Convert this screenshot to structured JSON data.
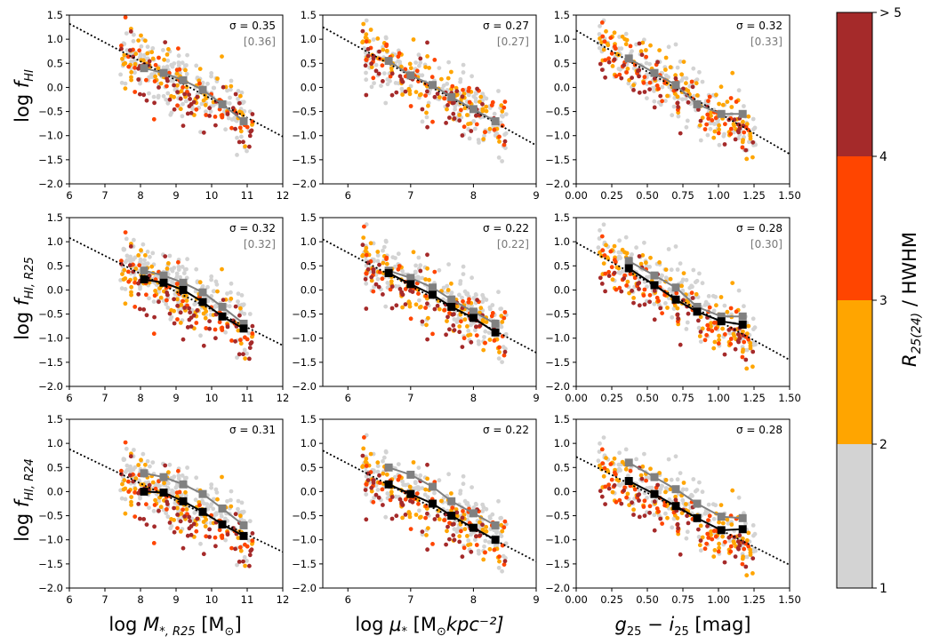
{
  "colors": {
    "gray_bin": "#d3d3d3",
    "orange_bin": "#ffa500",
    "redorange_bin": "#ff4500",
    "darkred_bin": "#a52a2a",
    "median_all": "#808080",
    "median_corrected": "#000000"
  },
  "colorbar": {
    "label_main": "R",
    "label_sub": "25(24)",
    "label_rest": " / HWHM",
    "ticks": [
      "1",
      "2",
      "3",
      "4",
      "> 5"
    ],
    "bins": [
      {
        "from": 1,
        "to": 2,
        "color": "#d3d3d3"
      },
      {
        "from": 2,
        "to": 3,
        "color": "#ffa500"
      },
      {
        "from": 3,
        "to": 4,
        "color": "#ff4500"
      },
      {
        "from": 4,
        "to": 5,
        "color": "#a52a2a"
      }
    ]
  },
  "chart_data": [
    {
      "type": "scatter",
      "id": "r1c1",
      "x_var": "mass",
      "y_var": "fhi",
      "xlim": [
        6,
        12
      ],
      "ylim": [
        -2.0,
        1.5
      ],
      "xticks": [
        "6",
        "7",
        "8",
        "9",
        "10",
        "11",
        "12"
      ],
      "yticks": [
        "−2.0",
        "−1.5",
        "−1.0",
        "−0.5",
        "0.0",
        "0.5",
        "1.0",
        "1.5"
      ],
      "sigma": "σ = 0.35",
      "sigma_bracket": "[0.36]",
      "fit_line": {
        "x": [
          6,
          12
        ],
        "y": [
          1.32,
          -1.02
        ]
      },
      "median_all": {
        "x": [
          8.1,
          8.65,
          9.2,
          9.75,
          10.3,
          10.9
        ],
        "y": [
          0.4,
          0.3,
          0.15,
          -0.05,
          -0.35,
          -0.7
        ]
      },
      "median_corrected": null
    },
    {
      "type": "scatter",
      "id": "r1c2",
      "x_var": "mu",
      "y_var": "fhi",
      "xlim": [
        5.6,
        9
      ],
      "ylim": [
        -2.0,
        1.5
      ],
      "xticks": [
        "6",
        "7",
        "8",
        "9"
      ],
      "yticks": [
        "−2.0",
        "−1.5",
        "−1.0",
        "−0.5",
        "0.0",
        "0.5",
        "1.0",
        "1.5"
      ],
      "sigma": "σ = 0.27",
      "sigma_bracket": "[0.27]",
      "fit_line": {
        "x": [
          5.6,
          9
        ],
        "y": [
          1.25,
          -1.2
        ]
      },
      "median_all": {
        "x": [
          6.65,
          7.0,
          7.35,
          7.65,
          8.0,
          8.35
        ],
        "y": [
          0.55,
          0.25,
          0.05,
          -0.2,
          -0.45,
          -0.7
        ]
      },
      "median_corrected": null
    },
    {
      "type": "scatter",
      "id": "r1c3",
      "x_var": "color",
      "y_var": "fhi",
      "xlim": [
        0,
        1.5
      ],
      "ylim": [
        -2.0,
        1.5
      ],
      "xticks": [
        "0.00",
        "0.25",
        "0.50",
        "0.75",
        "1.00",
        "1.25",
        "1.50"
      ],
      "yticks": [
        "−2.0",
        "−1.5",
        "−1.0",
        "−0.5",
        "0.0",
        "0.5",
        "1.0",
        "1.5"
      ],
      "sigma": "σ = 0.32",
      "sigma_bracket": "[0.33]",
      "fit_line": {
        "x": [
          0,
          1.5
        ],
        "y": [
          1.18,
          -1.38
        ]
      },
      "median_all": {
        "x": [
          0.37,
          0.55,
          0.7,
          0.85,
          1.02,
          1.17
        ],
        "y": [
          0.6,
          0.3,
          0.05,
          -0.35,
          -0.55,
          -0.55
        ]
      },
      "median_corrected": null
    },
    {
      "type": "scatter",
      "id": "r2c1",
      "x_var": "mass",
      "y_var": "fhi25",
      "xlim": [
        6,
        12
      ],
      "ylim": [
        -2.0,
        1.5
      ],
      "xticks": [
        "6",
        "7",
        "8",
        "9",
        "10",
        "11",
        "12"
      ],
      "yticks": [
        "−2.0",
        "−1.5",
        "−1.0",
        "−0.5",
        "0.0",
        "0.5",
        "1.0",
        "1.5"
      ],
      "sigma": "σ = 0.32",
      "sigma_bracket": "[0.32]",
      "fit_line": {
        "x": [
          6,
          12
        ],
        "y": [
          1.08,
          -1.15
        ]
      },
      "median_all": {
        "x": [
          8.1,
          8.65,
          9.2,
          9.75,
          10.3,
          10.9
        ],
        "y": [
          0.4,
          0.3,
          0.15,
          -0.05,
          -0.35,
          -0.7
        ]
      },
      "median_corrected": {
        "x": [
          8.1,
          8.65,
          9.2,
          9.75,
          10.3,
          10.9
        ],
        "y": [
          0.22,
          0.15,
          0.0,
          -0.25,
          -0.55,
          -0.8
        ]
      }
    },
    {
      "type": "scatter",
      "id": "r2c2",
      "x_var": "mu",
      "y_var": "fhi25",
      "xlim": [
        5.6,
        9
      ],
      "ylim": [
        -2.0,
        1.5
      ],
      "xticks": [
        "6",
        "7",
        "8",
        "9"
      ],
      "yticks": [
        "−2.0",
        "−1.5",
        "−1.0",
        "−0.5",
        "0.0",
        "0.5",
        "1.0",
        "1.5"
      ],
      "sigma": "σ = 0.22",
      "sigma_bracket": "[0.22]",
      "fit_line": {
        "x": [
          5.6,
          9
        ],
        "y": [
          1.05,
          -1.3
        ]
      },
      "median_all": {
        "x": [
          6.65,
          7.0,
          7.35,
          7.65,
          8.0,
          8.35
        ],
        "y": [
          0.4,
          0.25,
          0.05,
          -0.2,
          -0.45,
          -0.7
        ]
      },
      "median_corrected": {
        "x": [
          6.65,
          7.0,
          7.35,
          7.65,
          8.0,
          8.35
        ],
        "y": [
          0.35,
          0.12,
          -0.1,
          -0.35,
          -0.58,
          -0.88
        ]
      }
    },
    {
      "type": "scatter",
      "id": "r2c3",
      "x_var": "color",
      "y_var": "fhi25",
      "xlim": [
        0,
        1.5
      ],
      "ylim": [
        -2.0,
        1.5
      ],
      "xticks": [
        "0.00",
        "0.25",
        "0.50",
        "0.75",
        "1.00",
        "1.25",
        "1.50"
      ],
      "yticks": [
        "−2.0",
        "−1.5",
        "−1.0",
        "−0.5",
        "0.0",
        "0.5",
        "1.0",
        "1.5"
      ],
      "sigma": "σ = 0.28",
      "sigma_bracket": "[0.30]",
      "fit_line": {
        "x": [
          0,
          1.5
        ],
        "y": [
          0.98,
          -1.45
        ]
      },
      "median_all": {
        "x": [
          0.37,
          0.55,
          0.7,
          0.85,
          1.02,
          1.17
        ],
        "y": [
          0.6,
          0.3,
          0.05,
          -0.35,
          -0.55,
          -0.55
        ]
      },
      "median_corrected": {
        "x": [
          0.37,
          0.55,
          0.7,
          0.85,
          1.02,
          1.17
        ],
        "y": [
          0.45,
          0.1,
          -0.2,
          -0.45,
          -0.65,
          -0.72
        ]
      }
    },
    {
      "type": "scatter",
      "id": "r3c1",
      "x_var": "mass",
      "y_var": "fhi24",
      "xlim": [
        6,
        12
      ],
      "ylim": [
        -2.0,
        1.5
      ],
      "xticks": [
        "6",
        "7",
        "8",
        "9",
        "10",
        "11",
        "12"
      ],
      "yticks": [
        "−2.0",
        "−1.5",
        "−1.0",
        "−0.5",
        "0.0",
        "0.5",
        "1.0",
        "1.5"
      ],
      "sigma": "σ = 0.31",
      "sigma_bracket": null,
      "fit_line": {
        "x": [
          6,
          12
        ],
        "y": [
          0.88,
          -1.25
        ]
      },
      "median_all": {
        "x": [
          8.1,
          8.65,
          9.2,
          9.75,
          10.3,
          10.9
        ],
        "y": [
          0.38,
          0.3,
          0.15,
          -0.05,
          -0.35,
          -0.7
        ]
      },
      "median_corrected": {
        "x": [
          8.1,
          8.65,
          9.2,
          9.75,
          10.3,
          10.9
        ],
        "y": [
          0.0,
          -0.02,
          -0.2,
          -0.42,
          -0.68,
          -0.92
        ]
      }
    },
    {
      "type": "scatter",
      "id": "r3c2",
      "x_var": "mu",
      "y_var": "fhi24",
      "xlim": [
        5.6,
        9
      ],
      "ylim": [
        -2.0,
        1.5
      ],
      "xticks": [
        "6",
        "7",
        "8",
        "9"
      ],
      "yticks": [
        "−2.0",
        "−1.5",
        "−1.0",
        "−0.5",
        "0.0",
        "0.5",
        "1.0",
        "1.5"
      ],
      "sigma": "σ = 0.22",
      "sigma_bracket": null,
      "fit_line": {
        "x": [
          5.6,
          9
        ],
        "y": [
          0.85,
          -1.45
        ]
      },
      "median_all": {
        "x": [
          6.65,
          7.0,
          7.35,
          7.65,
          8.0,
          8.35
        ],
        "y": [
          0.5,
          0.35,
          0.1,
          -0.2,
          -0.45,
          -0.7
        ]
      },
      "median_corrected": {
        "x": [
          6.65,
          7.0,
          7.35,
          7.65,
          8.0,
          8.35
        ],
        "y": [
          0.15,
          -0.05,
          -0.25,
          -0.5,
          -0.75,
          -1.0
        ]
      }
    },
    {
      "type": "scatter",
      "id": "r3c3",
      "x_var": "color",
      "y_var": "fhi24",
      "xlim": [
        0,
        1.5
      ],
      "ylim": [
        -2.0,
        1.5
      ],
      "xticks": [
        "0.00",
        "0.25",
        "0.50",
        "0.75",
        "1.00",
        "1.25",
        "1.50"
      ],
      "yticks": [
        "−2.0",
        "−1.5",
        "−1.0",
        "−0.5",
        "0.0",
        "0.5",
        "1.0",
        "1.5"
      ],
      "sigma": "σ = 0.28",
      "sigma_bracket": null,
      "fit_line": {
        "x": [
          0,
          1.5
        ],
        "y": [
          0.72,
          -1.52
        ]
      },
      "median_all": {
        "x": [
          0.37,
          0.55,
          0.7,
          0.85,
          1.02,
          1.17
        ],
        "y": [
          0.6,
          0.3,
          0.05,
          -0.25,
          -0.52,
          -0.55
        ]
      },
      "median_corrected": {
        "x": [
          0.37,
          0.55,
          0.7,
          0.85,
          1.02,
          1.17
        ],
        "y": [
          0.22,
          -0.05,
          -0.3,
          -0.55,
          -0.8,
          -0.78
        ]
      }
    }
  ],
  "axis_labels": {
    "y": [
      {
        "main": "log ",
        "italic": "f",
        "sub": "HI"
      },
      {
        "main": "log ",
        "italic": "f",
        "sub": "HI, R25"
      },
      {
        "main": "log ",
        "italic": "f",
        "sub": "HI, R24"
      }
    ],
    "x": [
      {
        "pre": "log ",
        "italic": "M",
        "sub": "*, R25",
        "post": " [M",
        "post_sub": "⊙",
        "post_end": "]"
      },
      {
        "pre": "log ",
        "italic": "μ",
        "sub": "*",
        "post": " [M",
        "post_sub": "⊙",
        "post_end": "kpc⁻²]"
      },
      {
        "pre": "",
        "italic": "g",
        "sub": "25",
        "post": " − i",
        "post_sub": "25",
        "post_end": " [mag]"
      }
    ]
  }
}
